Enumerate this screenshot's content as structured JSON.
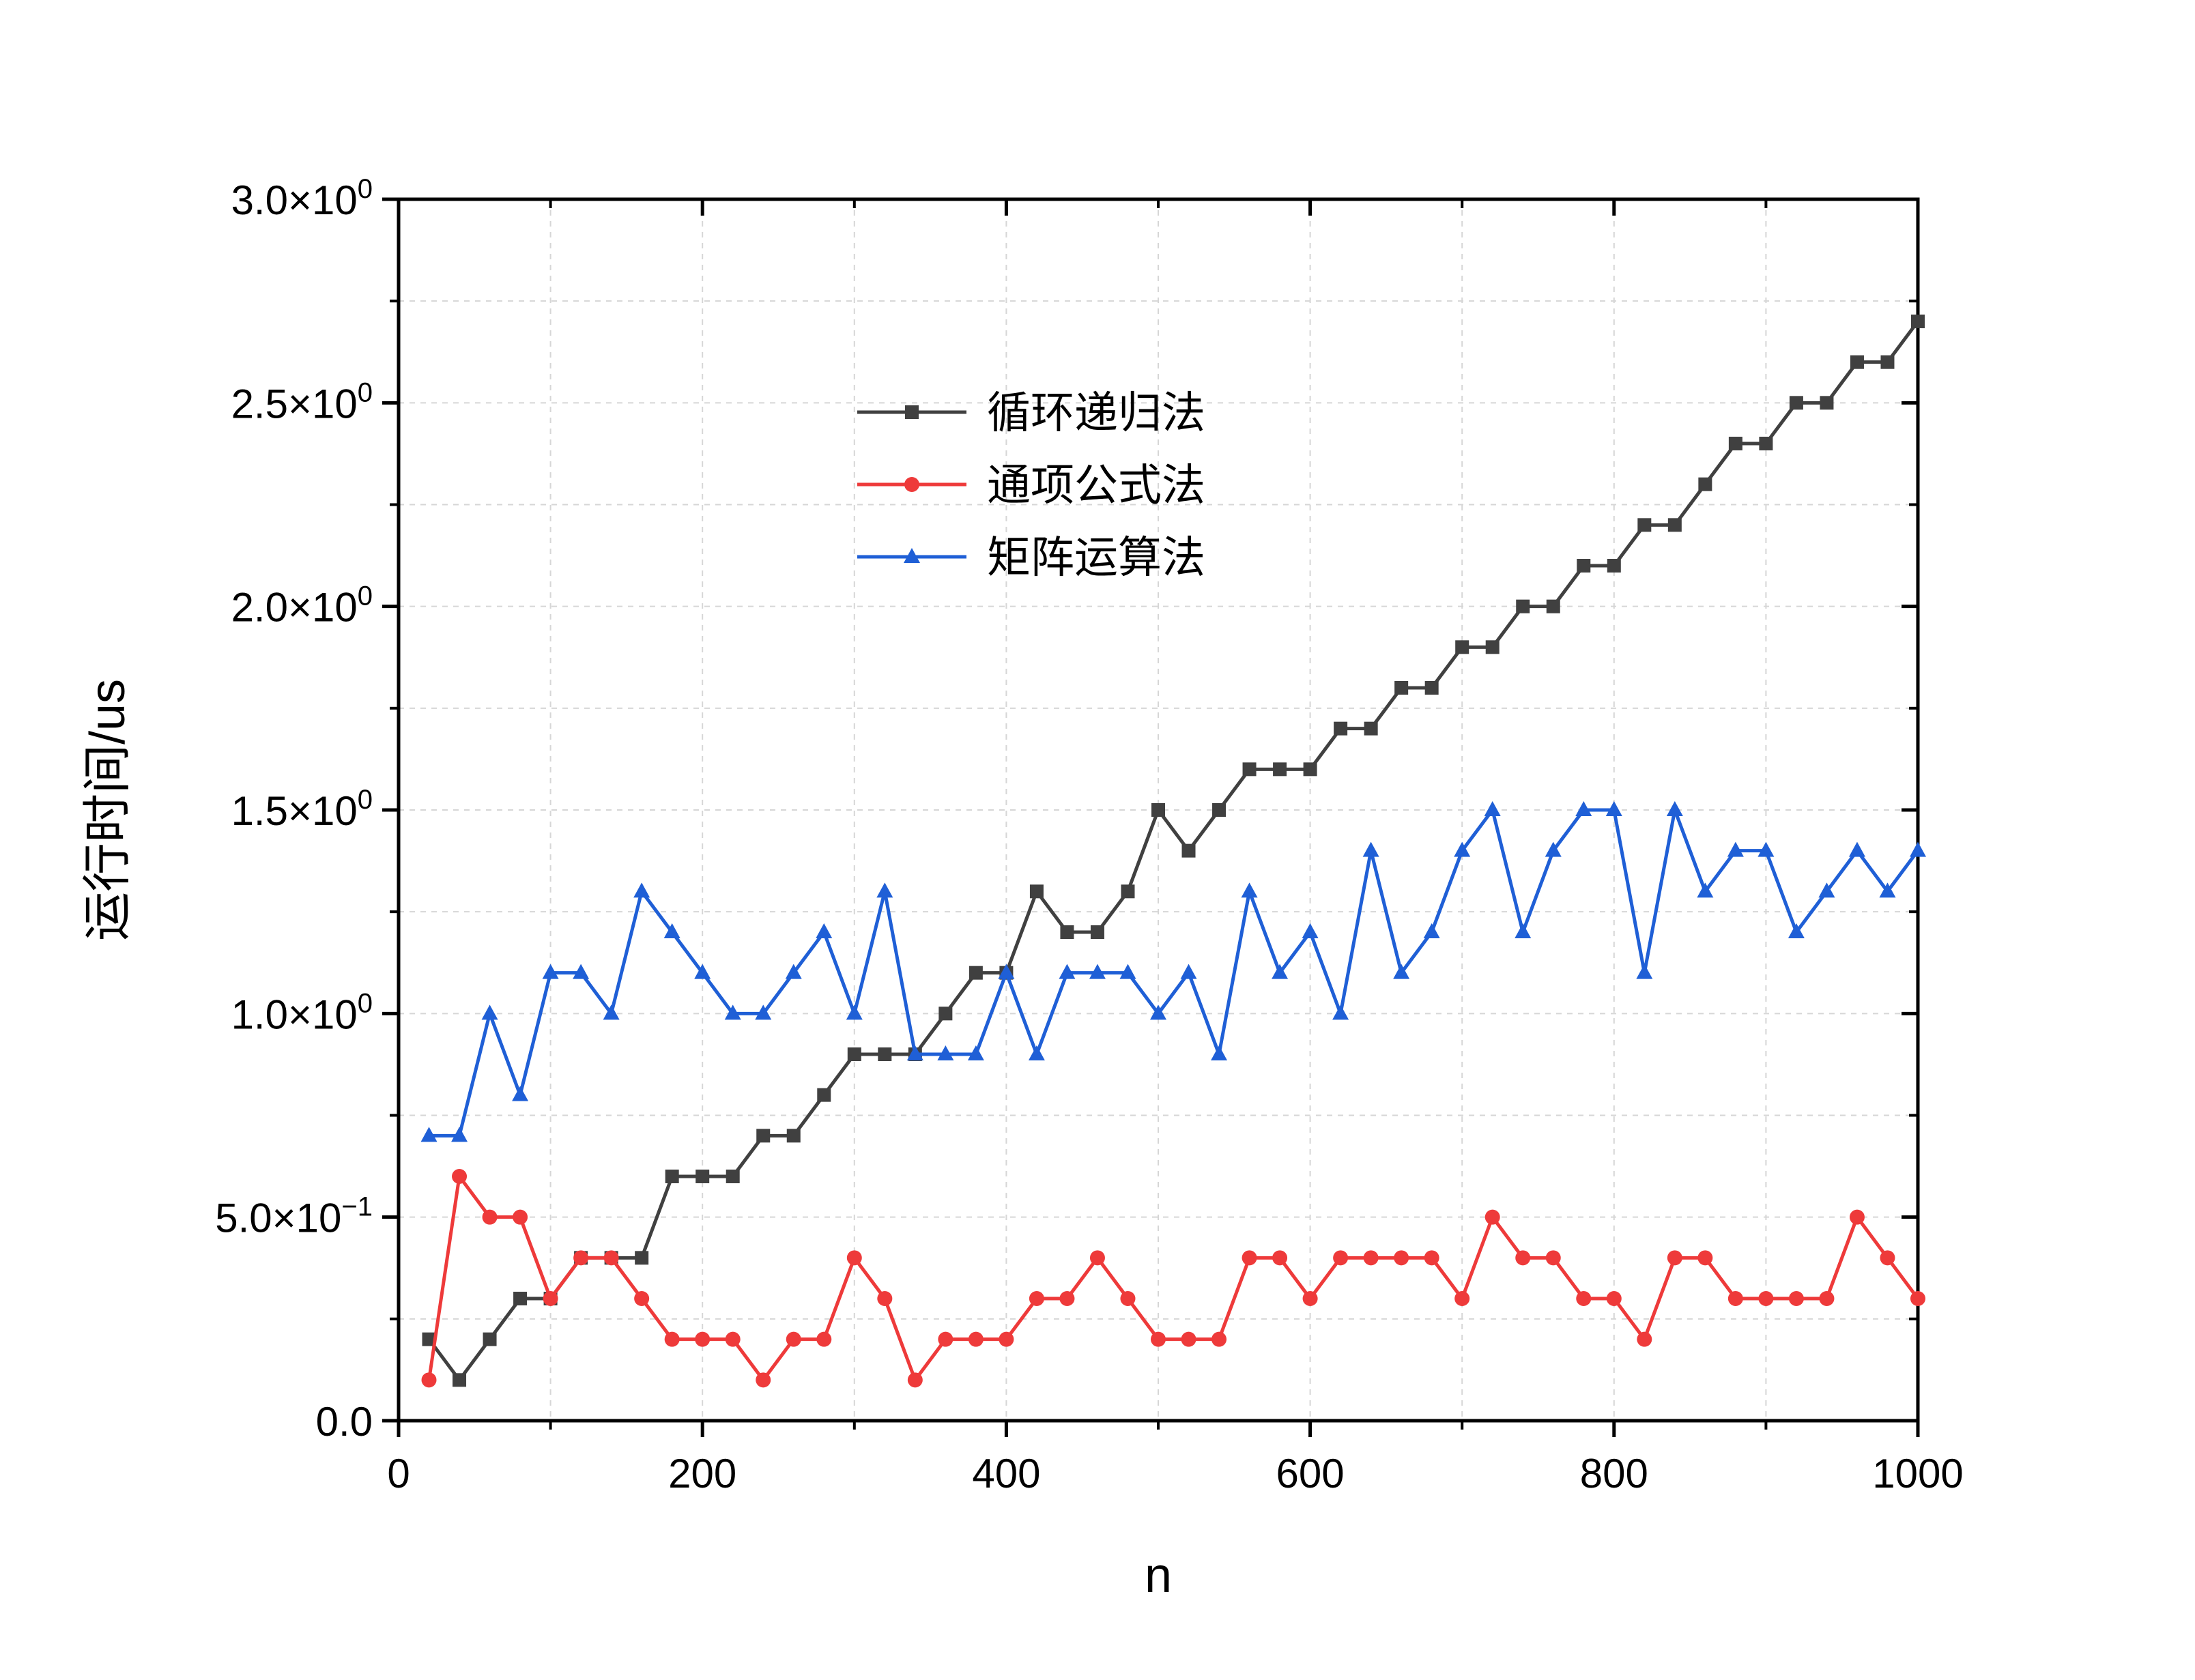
{
  "chart_data": {
    "type": "line",
    "xlabel": "n",
    "ylabel": "运行时间/us",
    "xlim": [
      0,
      1000
    ],
    "ylim": [
      0,
      3.0
    ],
    "x_ticks": [
      0,
      200,
      400,
      600,
      800,
      1000
    ],
    "x_tick_labels": [
      "0",
      "200",
      "400",
      "600",
      "800",
      "1000"
    ],
    "y_ticks": [
      0,
      0.5,
      1.0,
      1.5,
      2.0,
      2.5,
      3.0
    ],
    "y_tick_labels": [
      {
        "mant": "0.0",
        "exp": ""
      },
      {
        "mant": "5.0×10",
        "exp": "−1"
      },
      {
        "mant": "1.0×10",
        "exp": "0"
      },
      {
        "mant": "1.5×10",
        "exp": "0"
      },
      {
        "mant": "2.0×10",
        "exp": "0"
      },
      {
        "mant": "2.5×10",
        "exp": "0"
      },
      {
        "mant": "3.0×10",
        "exp": "0"
      }
    ],
    "grid": true,
    "legend_position": "top-center",
    "x": [
      20,
      40,
      60,
      80,
      100,
      120,
      140,
      160,
      180,
      200,
      220,
      240,
      260,
      280,
      300,
      320,
      340,
      360,
      380,
      400,
      420,
      440,
      460,
      480,
      500,
      520,
      540,
      560,
      580,
      600,
      620,
      640,
      660,
      680,
      700,
      720,
      740,
      760,
      780,
      800,
      820,
      840,
      860,
      880,
      900,
      920,
      940,
      960,
      980,
      1000
    ],
    "series": [
      {
        "name": "循环递归法",
        "color": "#404040",
        "marker": "square",
        "values": [
          0.2,
          0.1,
          0.2,
          0.3,
          0.3,
          0.4,
          0.4,
          0.4,
          0.6,
          0.6,
          0.6,
          0.7,
          0.7,
          0.8,
          0.9,
          0.9,
          0.9,
          1.0,
          1.1,
          1.1,
          1.3,
          1.2,
          1.2,
          1.3,
          1.5,
          1.4,
          1.5,
          1.6,
          1.6,
          1.6,
          1.7,
          1.7,
          1.8,
          1.8,
          1.9,
          1.9,
          2.0,
          2.0,
          2.1,
          2.1,
          2.2,
          2.2,
          2.3,
          2.4,
          2.4,
          2.5,
          2.5,
          2.6,
          2.6,
          2.7
        ]
      },
      {
        "name": "通项公式法",
        "color": "#ee3a3a",
        "marker": "circle",
        "values": [
          0.1,
          0.6,
          0.5,
          0.5,
          0.3,
          0.4,
          0.4,
          0.3,
          0.2,
          0.2,
          0.2,
          0.1,
          0.2,
          0.2,
          0.4,
          0.3,
          0.1,
          0.2,
          0.2,
          0.2,
          0.3,
          0.3,
          0.4,
          0.3,
          0.2,
          0.2,
          0.2,
          0.4,
          0.4,
          0.3,
          0.4,
          0.4,
          0.4,
          0.4,
          0.3,
          0.5,
          0.4,
          0.4,
          0.3,
          0.3,
          0.2,
          0.4,
          0.4,
          0.3,
          0.3,
          0.3,
          0.3,
          0.5,
          0.4,
          0.3
        ]
      },
      {
        "name": "矩阵运算法",
        "color": "#1f5fd6",
        "marker": "triangle",
        "values": [
          0.7,
          0.7,
          1.0,
          0.8,
          1.1,
          1.1,
          1.0,
          1.3,
          1.2,
          1.1,
          1.0,
          1.0,
          1.1,
          1.2,
          1.0,
          1.3,
          0.9,
          0.9,
          0.9,
          1.1,
          0.9,
          1.1,
          1.1,
          1.1,
          1.0,
          1.1,
          0.9,
          1.3,
          1.1,
          1.2,
          1.0,
          1.4,
          1.1,
          1.2,
          1.4,
          1.5,
          1.2,
          1.4,
          1.5,
          1.5,
          1.1,
          1.5,
          1.3,
          1.4,
          1.4,
          1.2,
          1.3,
          1.4,
          1.3,
          1.4
        ]
      }
    ]
  }
}
